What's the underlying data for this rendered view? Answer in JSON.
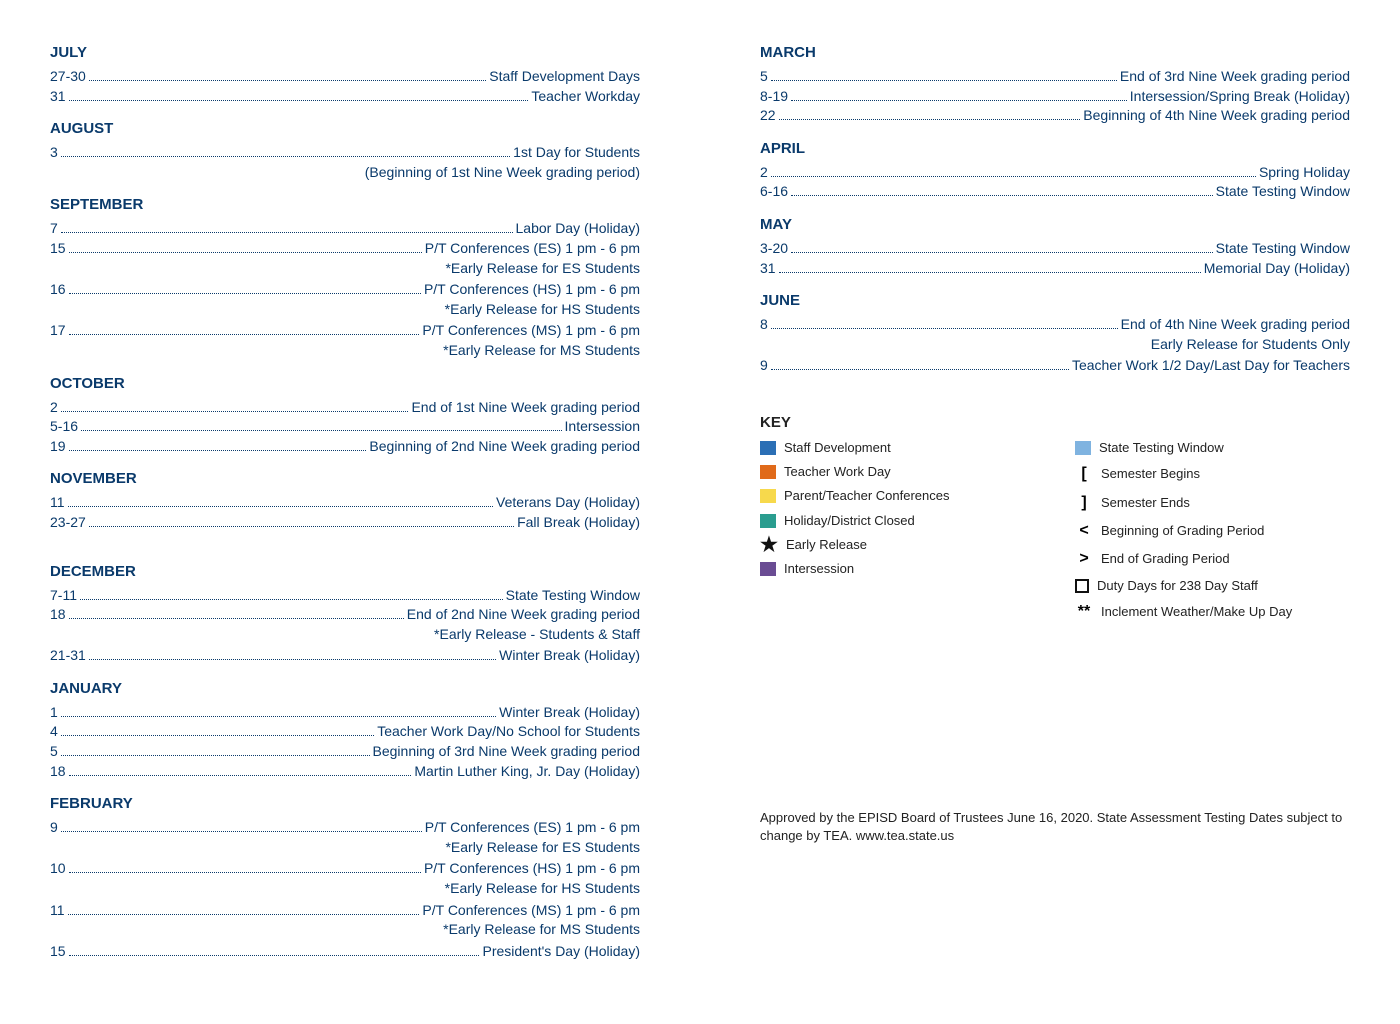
{
  "colors": {
    "navy": "#0a3a6b",
    "black": "#222222",
    "swatch_staff_dev": "#2b6fb5",
    "swatch_teacher_work": "#e06a1a",
    "swatch_pt_conf": "#f7d94c",
    "swatch_holiday": "#2a9d8f",
    "swatch_intersession": "#6a4c93",
    "swatch_testing": "#7fb3e0",
    "star_color": "#111111",
    "square_color": "#111111"
  },
  "fontsize": {
    "heading": 15,
    "body": 14,
    "key": 13,
    "footer": 13
  },
  "leftColumn": [
    {
      "type": "month",
      "label": "JULY",
      "color": "navy"
    },
    {
      "type": "event",
      "date": "27-30",
      "desc": "Staff Development Days",
      "color": "navy"
    },
    {
      "type": "event",
      "date": "31",
      "desc": "Teacher Workday",
      "color": "navy"
    },
    {
      "type": "month",
      "label": "AUGUST",
      "color": "navy"
    },
    {
      "type": "event",
      "date": "3",
      "desc": "1st Day for Students",
      "color": "navy"
    },
    {
      "type": "note",
      "text": "(Beginning of 1st Nine Week grading period)",
      "color": "navy"
    },
    {
      "type": "month",
      "label": "SEPTEMBER",
      "color": "navy"
    },
    {
      "type": "event",
      "date": "7",
      "desc": "Labor Day (Holiday)",
      "color": "navy"
    },
    {
      "type": "event",
      "date": "15",
      "desc": "P/T Conferences (ES) 1 pm - 6 pm",
      "color": "navy"
    },
    {
      "type": "note",
      "text": "*Early Release for ES Students",
      "color": "navy"
    },
    {
      "type": "event",
      "date": "16",
      "desc": "P/T Conferences (HS) 1 pm - 6 pm",
      "color": "navy"
    },
    {
      "type": "note",
      "text": "*Early Release for HS Students",
      "color": "navy"
    },
    {
      "type": "event",
      "date": "17",
      "desc": "P/T Conferences (MS)  1 pm - 6 pm",
      "color": "navy"
    },
    {
      "type": "note",
      "text": "*Early Release for MS Students",
      "color": "navy"
    },
    {
      "type": "month",
      "label": "OCTOBER",
      "color": "navy"
    },
    {
      "type": "event",
      "date": "2",
      "desc": "End of 1st Nine Week grading period",
      "color": "navy"
    },
    {
      "type": "event",
      "date": "5-16",
      "desc": "Intersession",
      "color": "navy"
    },
    {
      "type": "event",
      "date": "19",
      "desc": "Beginning of 2nd Nine Week grading period",
      "color": "navy"
    },
    {
      "type": "month",
      "label": "NOVEMBER",
      "color": "navy"
    },
    {
      "type": "event",
      "date": "11",
      "desc": "Veterans Day (Holiday)",
      "color": "navy"
    },
    {
      "type": "event",
      "date": "23-27",
      "desc": "Fall Break (Holiday)",
      "color": "navy"
    },
    {
      "type": "spacer"
    },
    {
      "type": "month",
      "label": "DECEMBER",
      "color": "navy"
    },
    {
      "type": "event",
      "date": "7-11",
      "desc": "State Testing Window",
      "color": "navy"
    },
    {
      "type": "event",
      "date": "18",
      "desc": "End of 2nd Nine Week grading period",
      "color": "navy"
    },
    {
      "type": "note",
      "text": "*Early Release - Students & Staff",
      "color": "navy"
    },
    {
      "type": "event",
      "date": "21-31",
      "desc": "Winter Break (Holiday)",
      "color": "navy"
    },
    {
      "type": "month",
      "label": "JANUARY",
      "color": "navy"
    },
    {
      "type": "event",
      "date": "1",
      "desc": "Winter Break (Holiday)",
      "color": "navy"
    },
    {
      "type": "event",
      "date": "4",
      "desc": "Teacher Work Day/No School for Students",
      "color": "navy"
    },
    {
      "type": "event",
      "date": "5",
      "desc": "Beginning of 3rd Nine Week grading period",
      "color": "navy"
    },
    {
      "type": "event",
      "date": "18",
      "desc": "Martin Luther King, Jr. Day (Holiday)",
      "color": "navy"
    },
    {
      "type": "month",
      "label": "FEBRUARY",
      "color": "navy"
    },
    {
      "type": "event",
      "date": "9",
      "desc": "P/T Conferences (ES) 1 pm - 6 pm",
      "color": "navy"
    },
    {
      "type": "note",
      "text": "*Early Release for ES Students",
      "color": "navy"
    },
    {
      "type": "event",
      "date": "10",
      "desc": "P/T Conferences (HS) 1 pm - 6 pm",
      "color": "navy"
    },
    {
      "type": "note",
      "text": "*Early Release for HS Students",
      "color": "navy"
    },
    {
      "type": "event",
      "date": "11",
      "desc": "P/T Conferences (MS) 1 pm - 6 pm",
      "color": "navy"
    },
    {
      "type": "note",
      "text": "*Early Release for MS Students",
      "color": "navy"
    },
    {
      "type": "event",
      "date": "15",
      "desc": "President's Day (Holiday)",
      "color": "navy"
    }
  ],
  "rightColumn": [
    {
      "type": "month",
      "label": "MARCH",
      "color": "navy"
    },
    {
      "type": "event",
      "date": "5",
      "desc": "End of 3rd Nine Week grading period",
      "color": "navy"
    },
    {
      "type": "event",
      "date": "8-19",
      "desc": "Intersession/Spring Break (Holiday)",
      "color": "navy"
    },
    {
      "type": "event",
      "date": "22",
      "desc": "Beginning of 4th Nine Week grading period",
      "color": "navy"
    },
    {
      "type": "month",
      "label": "APRIL",
      "color": "navy"
    },
    {
      "type": "event",
      "date": "2",
      "desc": "Spring Holiday",
      "color": "navy"
    },
    {
      "type": "event",
      "date": "6-16",
      "desc": "State Testing Window",
      "color": "navy"
    },
    {
      "type": "month",
      "label": "MAY",
      "color": "navy"
    },
    {
      "type": "event",
      "date": "3-20",
      "desc": "State Testing Window",
      "color": "navy"
    },
    {
      "type": "event",
      "date": "31",
      "desc": "Memorial Day (Holiday)",
      "color": "navy"
    },
    {
      "type": "month",
      "label": "JUNE",
      "color": "navy"
    },
    {
      "type": "event",
      "date": "8",
      "desc": "End of 4th Nine Week grading period",
      "color": "navy"
    },
    {
      "type": "note",
      "text": "Early Release for Students Only",
      "color": "navy"
    },
    {
      "type": "event",
      "date": "9",
      "desc": "Teacher Work 1/2 Day/Last Day for Teachers",
      "color": "navy"
    }
  ],
  "key": {
    "heading": "KEY",
    "left": [
      {
        "kind": "swatch",
        "colorKey": "swatch_staff_dev",
        "label": "Staff Development"
      },
      {
        "kind": "swatch",
        "colorKey": "swatch_teacher_work",
        "label": "Teacher Work Day"
      },
      {
        "kind": "swatch",
        "colorKey": "swatch_pt_conf",
        "label": "Parent/Teacher Conferences"
      },
      {
        "kind": "swatch",
        "colorKey": "swatch_holiday",
        "label": "Holiday/District Closed"
      },
      {
        "kind": "star",
        "label": "Early Release"
      },
      {
        "kind": "swatch",
        "colorKey": "swatch_intersession",
        "label": "Intersession"
      }
    ],
    "right": [
      {
        "kind": "swatch",
        "colorKey": "swatch_testing",
        "label": "State Testing Window"
      },
      {
        "kind": "symbol",
        "symbol": "[",
        "label": "Semester Begins"
      },
      {
        "kind": "symbol",
        "symbol": "]",
        "label": "Semester Ends"
      },
      {
        "kind": "symbol",
        "symbol": "<",
        "label": "Beginning of Grading Period"
      },
      {
        "kind": "symbol",
        "symbol": ">",
        "label": "End of Grading Period"
      },
      {
        "kind": "square",
        "label": "Duty Days for 238 Day Staff"
      },
      {
        "kind": "symbol",
        "symbol": "**",
        "label": "Inclement Weather/Make Up Day"
      }
    ]
  },
  "footer": "Approved by the EPISD Board of Trustees June 16, 2020. State Assessment Testing Dates subject to change by TEA. www.tea.state.us"
}
